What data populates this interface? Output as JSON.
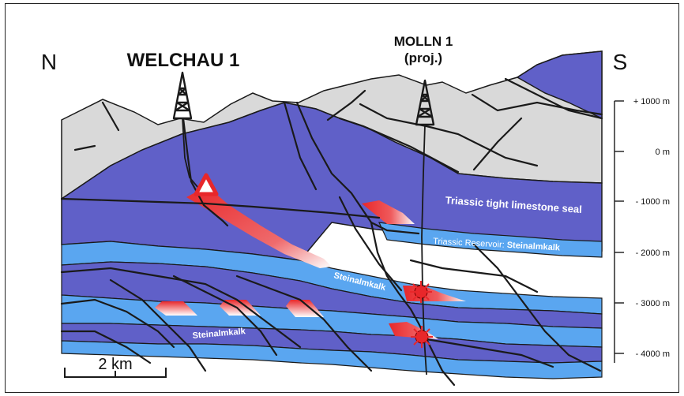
{
  "directions": {
    "north": "N",
    "south": "S"
  },
  "wells": {
    "welchau": {
      "name": "WELCHAU 1"
    },
    "molln": {
      "name": "MOLLN 1",
      "note": "(proj.)"
    }
  },
  "formations": {
    "seal": "Triassic tight limestone seal",
    "reservoir_prefix": "Triassic Reservoir: ",
    "reservoir_name": "Steinalmkalk",
    "steinalmkalk_1": "Steinalmkalk",
    "steinalmkalk_2": "Steinalmkalk"
  },
  "depth_scale": {
    "ticks": [
      "+ 1000 m",
      "0 m",
      "- 1000 m",
      "- 2000 m",
      "- 3000 m",
      "- 4000 m"
    ]
  },
  "scale_bar": {
    "label": "2 km"
  },
  "colors": {
    "overburden": "#d9d9d9",
    "limestone": "#6060c8",
    "reservoir": "#5aa6f0",
    "hydrocarbon": "#e8272a",
    "outline": "#1a1a1a"
  }
}
